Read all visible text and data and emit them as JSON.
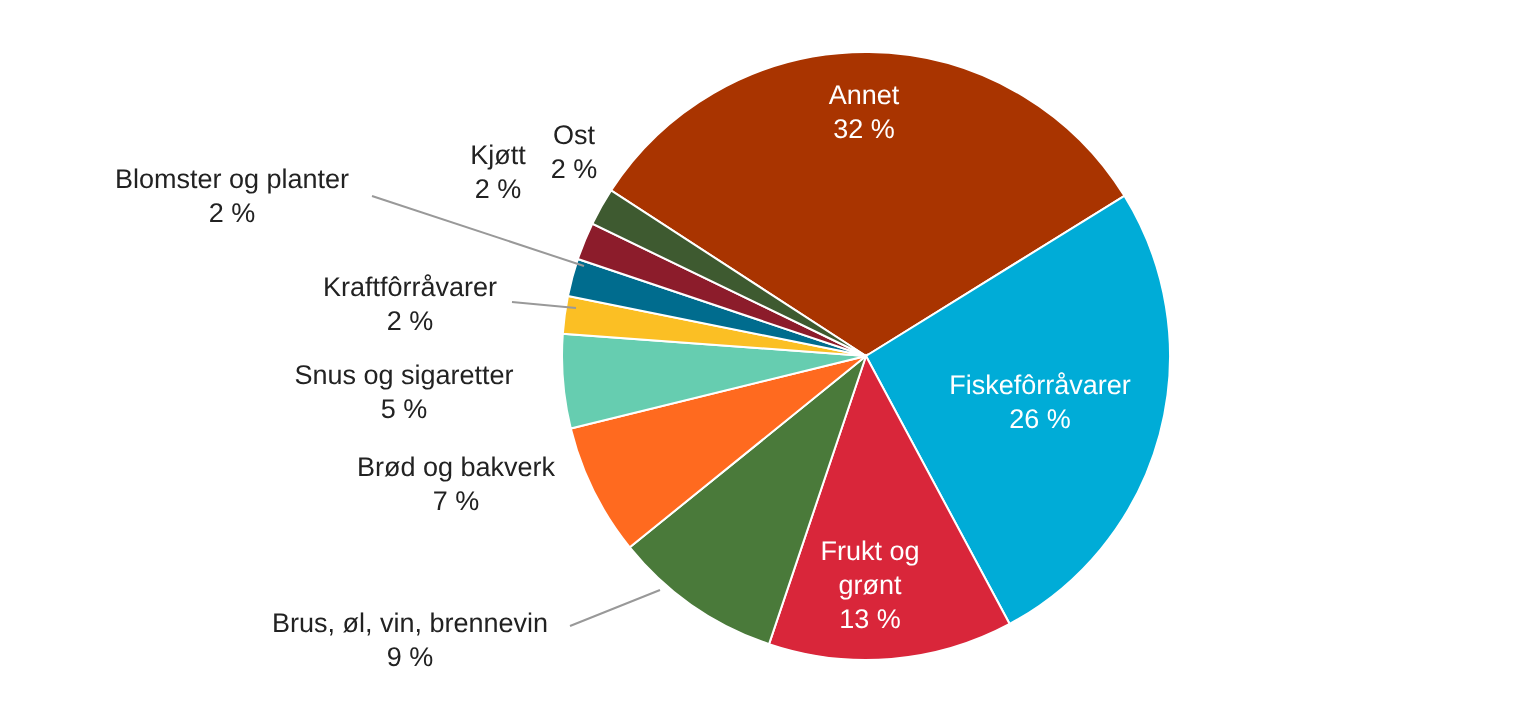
{
  "chart_data": {
    "type": "pie",
    "categories": [
      "Annet",
      "Fiskefôrråvarer",
      "Frukt og grønt",
      "Brus, øl, vin, brennevin",
      "Brød og bakverk",
      "Snus og sigaretter",
      "Kraftfôrråvarer",
      "Blomster og planter",
      "Kjøtt",
      "Ost"
    ],
    "values": [
      32,
      26,
      13,
      9,
      7,
      5,
      2,
      2,
      2,
      2
    ],
    "colors": [
      "#a93400",
      "#00acd7",
      "#d9263a",
      "#4a7a3a",
      "#ff6a1f",
      "#66cdb0",
      "#fbbf24",
      "#006c8e",
      "#8c1c2b",
      "#3e5a30"
    ],
    "value_labels": [
      "32 %",
      "26 %",
      "13 %",
      "9 %",
      "7 %",
      "5 %",
      "2 %",
      "2 %",
      "2 %",
      "2 %"
    ]
  }
}
